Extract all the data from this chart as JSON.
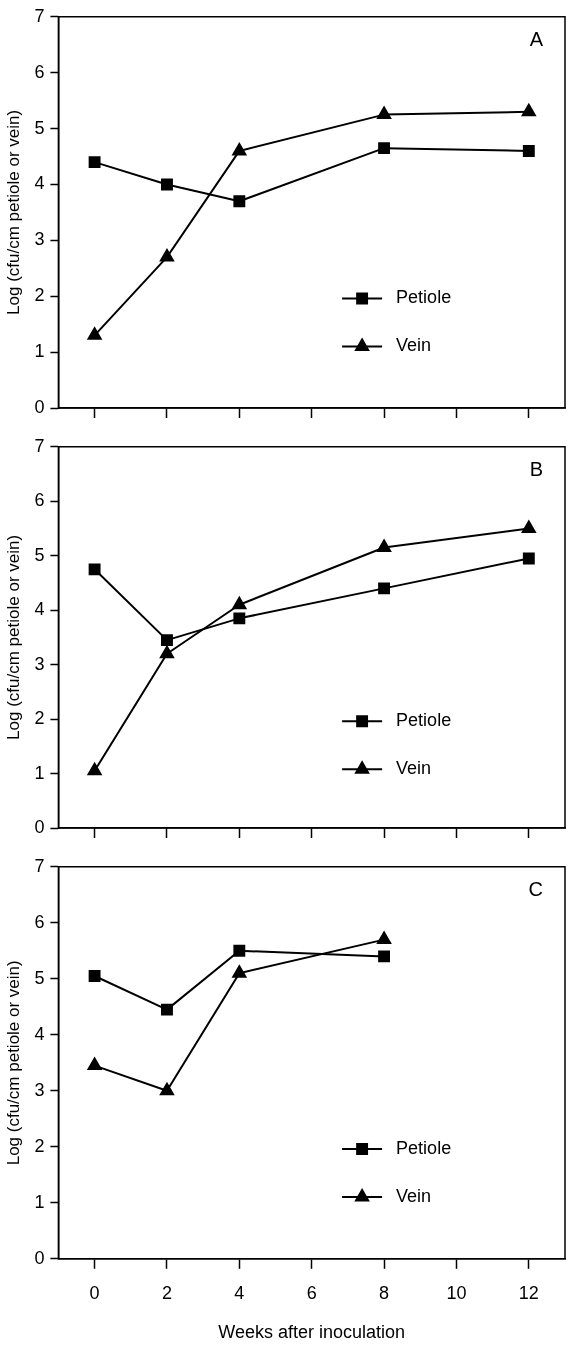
{
  "chart_data": [
    {
      "type": "line",
      "annotations": [
        "A"
      ],
      "ylabel": "Log (cfu/cm petiole or vein)",
      "xlim": [
        -1,
        13
      ],
      "xticks": [
        0,
        2,
        4,
        6,
        8,
        10,
        12
      ],
      "ylim": [
        0,
        7
      ],
      "yticks": [
        0,
        1,
        2,
        3,
        4,
        5,
        6,
        7
      ],
      "tick_labels": "y",
      "grid": false,
      "legend": "bottom right",
      "x": [
        0,
        2,
        4,
        8,
        12
      ],
      "series": [
        {
          "name": "Petiole",
          "color": "#000000",
          "marker": "square",
          "values": [
            4.4,
            4.0,
            3.7,
            4.65,
            4.6
          ]
        },
        {
          "name": "Vein",
          "color": "#000000",
          "marker": "triangle",
          "values": [
            1.3,
            2.7,
            4.6,
            5.25,
            5.3
          ]
        }
      ]
    },
    {
      "type": "line",
      "annotations": [
        "B"
      ],
      "ylabel": "Log (cfu/cm petiole or vein)",
      "xlim": [
        -1,
        13
      ],
      "xticks": [
        0,
        2,
        4,
        6,
        8,
        10,
        12
      ],
      "ylim": [
        0,
        7
      ],
      "yticks": [
        0,
        1,
        2,
        3,
        4,
        5,
        6,
        7
      ],
      "tick_labels": "y",
      "grid": false,
      "legend": "bottom right",
      "x": [
        0,
        2,
        4,
        8,
        12
      ],
      "series": [
        {
          "name": "Petiole",
          "color": "#000000",
          "marker": "square",
          "values": [
            4.75,
            3.45,
            3.85,
            4.4,
            4.95
          ]
        },
        {
          "name": "Vein",
          "color": "#000000",
          "marker": "triangle",
          "values": [
            1.05,
            3.2,
            4.1,
            5.15,
            5.5
          ]
        }
      ]
    },
    {
      "type": "line",
      "annotations": [
        "C"
      ],
      "xlabel": "Weeks after inoculation",
      "ylabel": "Log (cfu/cm petiole or vein)",
      "xlim": [
        -1,
        13
      ],
      "xticks": [
        0,
        2,
        4,
        6,
        8,
        10,
        12
      ],
      "ylim": [
        0,
        7
      ],
      "yticks": [
        0,
        1,
        2,
        3,
        4,
        5,
        6,
        7
      ],
      "grid": false,
      "legend": "bottom right",
      "x": [
        0,
        2,
        4,
        8
      ],
      "series": [
        {
          "name": "Petiole",
          "color": "#000000",
          "marker": "square",
          "values": [
            5.05,
            4.45,
            5.5,
            5.4
          ]
        },
        {
          "name": "Vein",
          "color": "#000000",
          "marker": "triangle",
          "values": [
            3.45,
            3.0,
            5.1,
            5.7
          ]
        }
      ]
    }
  ]
}
